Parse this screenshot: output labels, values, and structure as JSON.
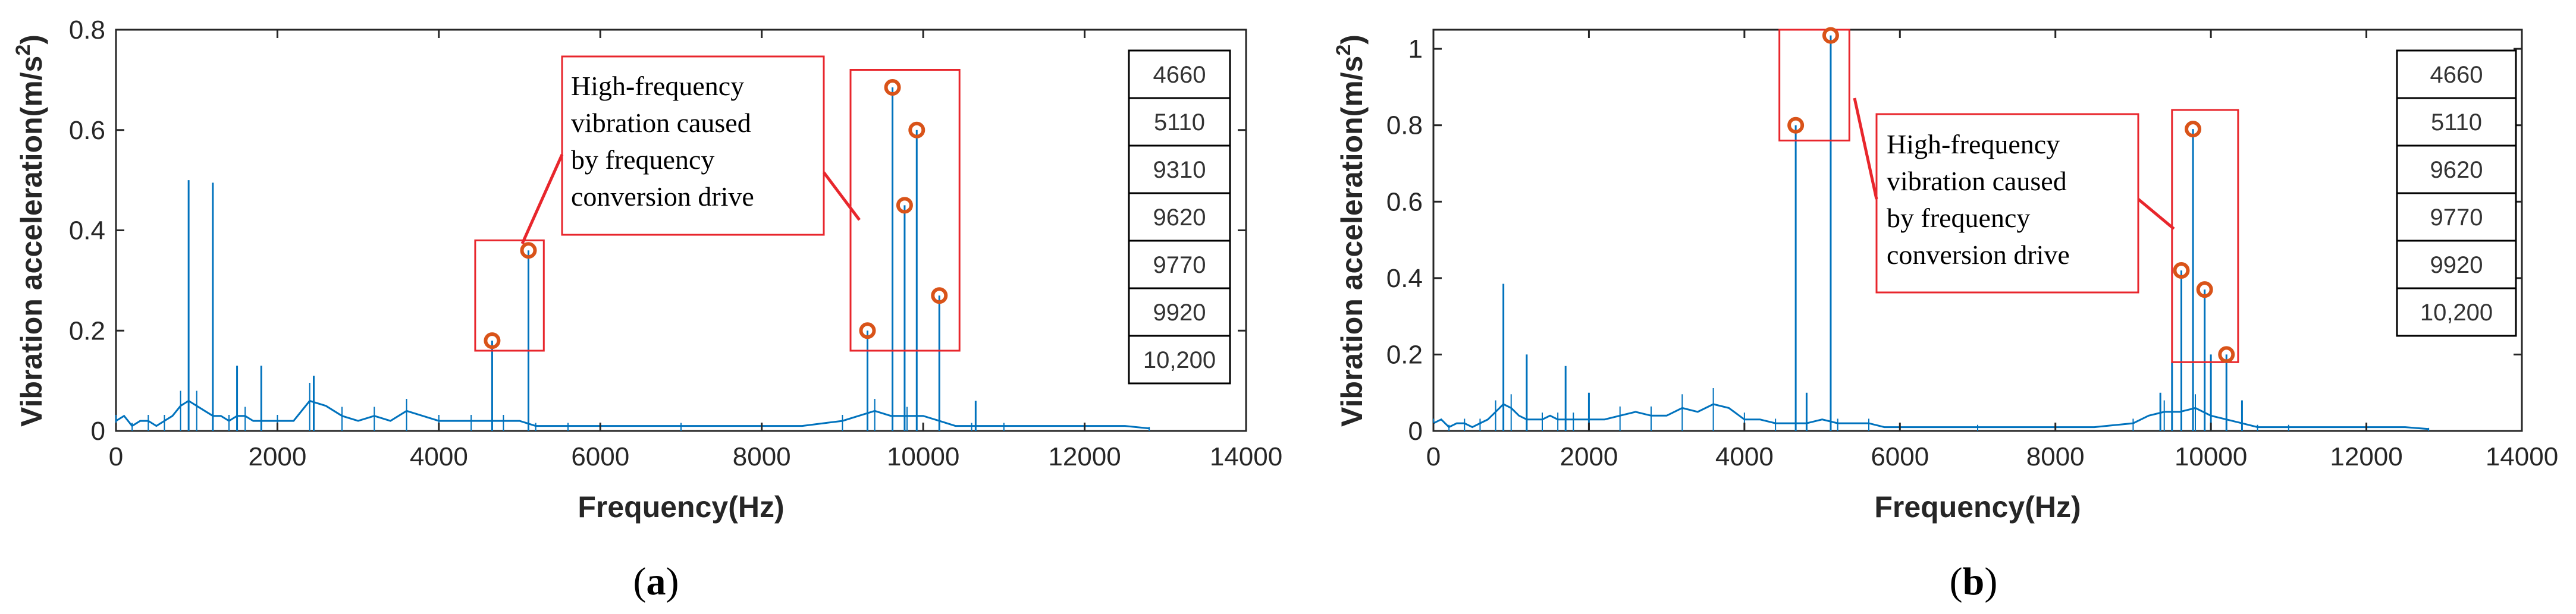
{
  "chart_data": [
    {
      "type": "line",
      "panel_label": "a",
      "title": "",
      "xlabel": "Frequency(Hz)",
      "ylabel_main": "Vibration acceleration(m/s",
      "ylabel_sup": "2",
      "ylabel_end": ")",
      "xlim": [
        0,
        14000
      ],
      "ylim": [
        0,
        0.8
      ],
      "xticks": [
        0,
        2000,
        4000,
        6000,
        8000,
        10000,
        12000,
        14000
      ],
      "yticks": [
        0,
        0.2,
        0.4,
        0.6,
        0.8
      ],
      "ytick_labels": [
        "0",
        "0.2",
        "0.4",
        "0.6",
        "0.8"
      ],
      "series": [
        {
          "name": "spectrum",
          "x": [
            0,
            100,
            200,
            300,
            400,
            500,
            600,
            700,
            800,
            900,
            1000,
            1100,
            1200,
            1300,
            1400,
            1500,
            1600,
            1700,
            1800,
            1900,
            2000,
            2200,
            2400,
            2600,
            2800,
            3000,
            3200,
            3400,
            3600,
            3800,
            4000,
            4200,
            4400,
            4600,
            4800,
            5000,
            5200,
            5400,
            5600,
            5800,
            6000,
            6500,
            7000,
            7500,
            8000,
            8500,
            9000,
            9200,
            9400,
            9600,
            9800,
            10000,
            10200,
            10400,
            10600,
            10800,
            11000,
            11500,
            12000,
            12500,
            12800
          ],
          "values": [
            0.02,
            0.03,
            0.01,
            0.02,
            0.02,
            0.01,
            0.02,
            0.03,
            0.05,
            0.06,
            0.05,
            0.04,
            0.03,
            0.03,
            0.02,
            0.03,
            0.03,
            0.02,
            0.02,
            0.02,
            0.02,
            0.02,
            0.06,
            0.05,
            0.03,
            0.02,
            0.03,
            0.02,
            0.04,
            0.03,
            0.02,
            0.02,
            0.02,
            0.02,
            0.02,
            0.02,
            0.01,
            0.01,
            0.01,
            0.01,
            0.01,
            0.01,
            0.01,
            0.01,
            0.01,
            0.01,
            0.02,
            0.03,
            0.04,
            0.03,
            0.03,
            0.03,
            0.02,
            0.01,
            0.01,
            0.01,
            0.01,
            0.01,
            0.01,
            0.01,
            0.005
          ]
        },
        {
          "name": "spikes",
          "x": [
            900,
            1200,
            1500,
            1800,
            2450,
            4660,
            5110,
            9310,
            9620,
            9770,
            9920,
            10200,
            10650
          ],
          "values": [
            0.5,
            0.495,
            0.13,
            0.13,
            0.11,
            0.18,
            0.36,
            0.2,
            0.685,
            0.45,
            0.6,
            0.27,
            0.06
          ]
        }
      ],
      "markers": [
        {
          "x": 4660,
          "y": 0.18
        },
        {
          "x": 5110,
          "y": 0.36
        },
        {
          "x": 9310,
          "y": 0.2
        },
        {
          "x": 9620,
          "y": 0.685
        },
        {
          "x": 9770,
          "y": 0.45
        },
        {
          "x": 9920,
          "y": 0.6
        },
        {
          "x": 10200,
          "y": 0.27
        }
      ],
      "highlight_boxes": [
        {
          "x0": 4450,
          "x1": 5300,
          "y0": 0.16,
          "y1": 0.38
        },
        {
          "x0": 9100,
          "x1": 10450,
          "y0": 0.16,
          "y1": 0.72
        }
      ],
      "annotation": [
        "High-frequency",
        "vibration caused",
        "by frequency",
        "conversion drive"
      ],
      "legend_frequencies": [
        "4660",
        "5110",
        "9310",
        "9620",
        "9770",
        "9920",
        "10,200"
      ],
      "colors": {
        "line": "#0072BD",
        "marker": "#D95319",
        "highlight": "#E8262C",
        "axes": "#262626"
      }
    },
    {
      "type": "line",
      "panel_label": "b",
      "title": "",
      "xlabel": "Frequency(Hz)",
      "ylabel_main": "Vibration acceleration(m/s",
      "ylabel_sup": "2",
      "ylabel_end": ")",
      "xlim": [
        0,
        14000
      ],
      "ylim": [
        0,
        1.05
      ],
      "xticks": [
        0,
        2000,
        4000,
        6000,
        8000,
        10000,
        12000,
        14000
      ],
      "yticks": [
        0,
        0.2,
        0.4,
        0.6,
        0.8,
        1.0
      ],
      "ytick_labels": [
        "0",
        "0.2",
        "0.4",
        "0.6",
        "0.8",
        "1"
      ],
      "series": [
        {
          "name": "spectrum",
          "x": [
            0,
            100,
            200,
            300,
            400,
            500,
            600,
            700,
            800,
            900,
            1000,
            1100,
            1200,
            1300,
            1400,
            1500,
            1600,
            1700,
            1800,
            1900,
            2000,
            2200,
            2400,
            2600,
            2800,
            3000,
            3200,
            3400,
            3600,
            3800,
            4000,
            4200,
            4400,
            4600,
            4800,
            5000,
            5200,
            5400,
            5600,
            5800,
            6000,
            6500,
            7000,
            7500,
            8000,
            8500,
            9000,
            9200,
            9400,
            9600,
            9800,
            10000,
            10200,
            10400,
            10600,
            10800,
            11000,
            11500,
            12000,
            12500,
            12800
          ],
          "values": [
            0.02,
            0.03,
            0.01,
            0.02,
            0.02,
            0.01,
            0.02,
            0.03,
            0.05,
            0.07,
            0.06,
            0.04,
            0.03,
            0.03,
            0.03,
            0.04,
            0.03,
            0.03,
            0.03,
            0.03,
            0.03,
            0.03,
            0.04,
            0.05,
            0.04,
            0.04,
            0.06,
            0.05,
            0.07,
            0.06,
            0.03,
            0.03,
            0.02,
            0.02,
            0.02,
            0.03,
            0.02,
            0.02,
            0.02,
            0.01,
            0.01,
            0.01,
            0.01,
            0.01,
            0.01,
            0.01,
            0.02,
            0.04,
            0.05,
            0.05,
            0.06,
            0.04,
            0.03,
            0.02,
            0.01,
            0.01,
            0.01,
            0.01,
            0.01,
            0.01,
            0.005
          ]
        },
        {
          "name": "spikes",
          "x": [
            900,
            1200,
            1700,
            2000,
            4660,
            4800,
            5110,
            9350,
            9500,
            9620,
            9770,
            9920,
            10000,
            10200,
            10400
          ],
          "values": [
            0.385,
            0.2,
            0.17,
            0.1,
            0.8,
            0.1,
            1.035,
            0.1,
            0.18,
            0.42,
            0.79,
            0.37,
            0.2,
            0.2,
            0.08
          ]
        }
      ],
      "markers": [
        {
          "x": 4660,
          "y": 0.8
        },
        {
          "x": 5110,
          "y": 1.035
        },
        {
          "x": 9620,
          "y": 0.42
        },
        {
          "x": 9770,
          "y": 0.79
        },
        {
          "x": 9920,
          "y": 0.37
        },
        {
          "x": 10200,
          "y": 0.2
        }
      ],
      "highlight_boxes": [
        {
          "x0": 4450,
          "x1": 5350,
          "y0": 0.76,
          "y1": 1.05
        },
        {
          "x0": 9500,
          "x1": 10350,
          "y0": 0.18,
          "y1": 0.84
        }
      ],
      "annotation": [
        "High-frequency",
        "vibration caused",
        "by frequency",
        "conversion drive"
      ],
      "legend_frequencies": [
        "4660",
        "5110",
        "9620",
        "9770",
        "9920",
        "10,200"
      ],
      "colors": {
        "line": "#0072BD",
        "marker": "#D95319",
        "highlight": "#E8262C",
        "axes": "#262626"
      }
    }
  ]
}
